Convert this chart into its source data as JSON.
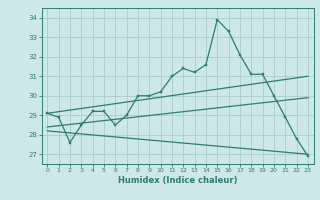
{
  "xlabel": "Humidex (Indice chaleur)",
  "ylabel": "",
  "background_color": "#cce8e8",
  "grid_color": "#aacccc",
  "line_color": "#2e7d6e",
  "xlim": [
    -0.5,
    23.5
  ],
  "ylim": [
    26.5,
    34.5
  ],
  "yticks": [
    27,
    28,
    29,
    30,
    31,
    32,
    33,
    34
  ],
  "xticks": [
    0,
    1,
    2,
    3,
    4,
    5,
    6,
    7,
    8,
    9,
    10,
    11,
    12,
    13,
    14,
    15,
    16,
    17,
    18,
    19,
    20,
    21,
    22,
    23
  ],
  "main_x": [
    0,
    1,
    2,
    3,
    4,
    5,
    6,
    7,
    8,
    9,
    10,
    11,
    12,
    13,
    14,
    15,
    16,
    17,
    18,
    19,
    20,
    21,
    22,
    23
  ],
  "main_y": [
    29.1,
    28.9,
    27.6,
    28.5,
    29.2,
    29.2,
    28.5,
    29.0,
    30.0,
    30.0,
    30.2,
    31.0,
    31.4,
    31.2,
    31.6,
    33.9,
    33.3,
    32.1,
    31.1,
    31.1,
    30.0,
    28.9,
    27.8,
    26.9
  ],
  "trend1_x": [
    0,
    23
  ],
  "trend1_y": [
    29.1,
    31.0
  ],
  "trend2_x": [
    0,
    23
  ],
  "trend2_y": [
    28.4,
    29.9
  ],
  "trend3_x": [
    0,
    23
  ],
  "trend3_y": [
    28.2,
    27.0
  ]
}
